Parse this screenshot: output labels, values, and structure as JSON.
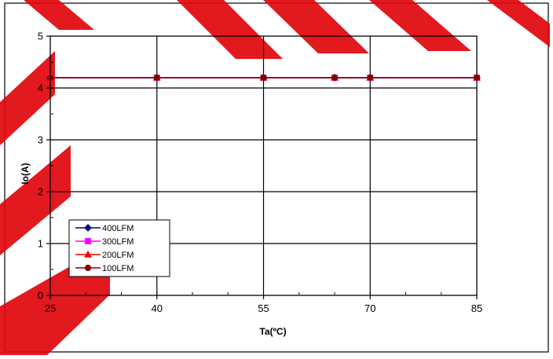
{
  "chart_data": {
    "type": "line",
    "title": "",
    "xlabel": "Ta(ºC)",
    "ylabel": "Io(A)",
    "xlim": [
      25,
      85
    ],
    "ylim": [
      0,
      5
    ],
    "x_ticks": [
      25,
      40,
      55,
      70,
      85
    ],
    "x_tick_labels": [
      "25",
      "40",
      "55",
      "70",
      "85"
    ],
    "y_ticks": [
      0,
      1,
      2,
      3,
      4,
      5
    ],
    "y_tick_labels": [
      "0",
      "1",
      "2",
      "3",
      "4",
      "5"
    ],
    "x_minor_step": 5,
    "y_minor_step": 0.5,
    "grid": true,
    "legend_position": "bottom-left",
    "x": [
      25,
      40,
      55,
      65,
      70,
      85
    ],
    "series": [
      {
        "name": "400LFM",
        "values": [
          4.2,
          4.2,
          4.2,
          4.2,
          4.2,
          4.2
        ],
        "color": "#000080",
        "marker": "diamond"
      },
      {
        "name": "300LFM",
        "values": [
          4.2,
          4.2,
          4.2,
          4.2,
          4.2,
          4.2
        ],
        "color": "#FF00FF",
        "marker": "square"
      },
      {
        "name": "200LFM",
        "values": [
          4.2,
          4.2,
          4.2,
          4.2,
          4.2,
          4.2
        ],
        "color": "#FF0000",
        "marker": "triangle"
      },
      {
        "name": "100LFM",
        "values": [
          4.2,
          4.2,
          4.2,
          4.2,
          4.2,
          4.2
        ],
        "color": "#800000",
        "marker": "circle"
      }
    ]
  }
}
